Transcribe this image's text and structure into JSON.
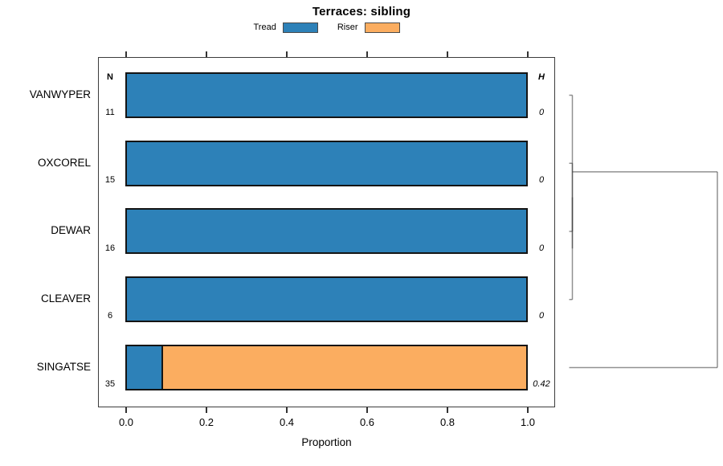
{
  "title": "Terraces: sibling",
  "legend": [
    {
      "label": "Tread",
      "color": "#2D81B8"
    },
    {
      "label": "Riser",
      "color": "#FBAD60"
    }
  ],
  "columns": {
    "n_header": "N",
    "h_header": "H"
  },
  "x_ticks": [
    "0.0",
    "0.2",
    "0.4",
    "0.6",
    "0.8",
    "1.0"
  ],
  "xlabel": "Proportion",
  "chart_data": {
    "type": "bar",
    "orientation": "horizontal",
    "stacked": true,
    "title": "Terraces: sibling",
    "xlabel": "Proportion",
    "xlim": [
      0,
      1
    ],
    "categories": [
      "VANWYPER",
      "OXCOREL",
      "DEWAR",
      "CLEAVER",
      "SINGATSE"
    ],
    "n": [
      11,
      15,
      16,
      6,
      35
    ],
    "h": [
      "0",
      "0",
      "0",
      "0",
      "0.42"
    ],
    "series": [
      {
        "name": "Tread",
        "color": "#2D81B8",
        "values": [
          1,
          1,
          1,
          1,
          0.086
        ]
      },
      {
        "name": "Riser",
        "color": "#FBAD60",
        "values": [
          0,
          0,
          0,
          0,
          0.914
        ]
      }
    ],
    "dendrogram": {
      "leaf_order": [
        "VANWYPER",
        "OXCOREL",
        "DEWAR",
        "CLEAVER",
        "SINGATSE"
      ],
      "merges": [
        {
          "children": [
            "OXCOREL",
            "DEWAR"
          ],
          "height": 0
        },
        {
          "children": [
            "m0",
            "CLEAVER"
          ],
          "height": 0
        },
        {
          "children": [
            "m1",
            "VANWYPER"
          ],
          "height": 0
        },
        {
          "children": [
            "m2",
            "SINGATSE"
          ],
          "height": 0.42
        }
      ],
      "max_height": 0.42
    }
  }
}
